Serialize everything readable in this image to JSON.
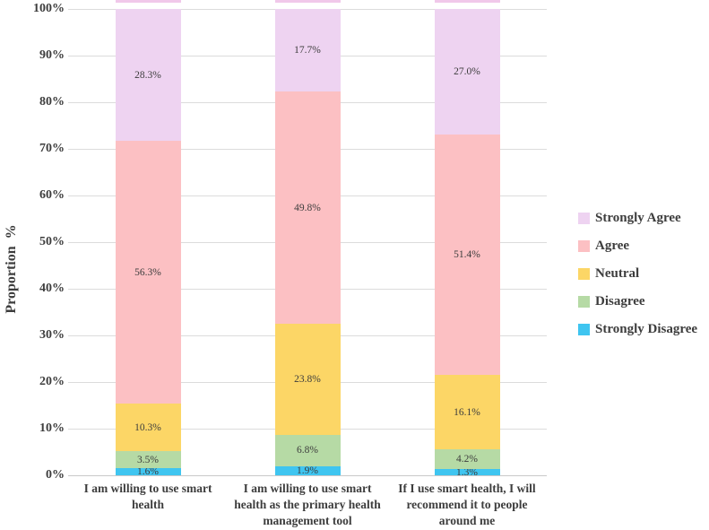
{
  "chart_data": {
    "type": "bar",
    "stacked": true,
    "orientation": "vertical",
    "title": "",
    "xlabel": "",
    "ylabel": "Proportion  %",
    "ylim": [
      0,
      100
    ],
    "yticks": [
      "0%",
      "10%",
      "20%",
      "30%",
      "40%",
      "50%",
      "60%",
      "70%",
      "80%",
      "90%",
      "100%"
    ],
    "grid": true,
    "legend_position": "right",
    "categories": [
      "I am willing to use smart health",
      "I am willing to use smart health as the primary health management tool",
      "If I use smart health, I will recommend it to people around me"
    ],
    "category_lines": [
      [
        "I am willing to use smart",
        "health"
      ],
      [
        "I am willing to use smart",
        "health as the primary health",
        "management tool"
      ],
      [
        "If I use smart health, I will",
        "recommend it to people",
        "around me"
      ]
    ],
    "series": [
      {
        "name": "Strongly Agree",
        "color": "#eed3f1",
        "values": [
          28.3,
          17.7,
          27.0
        ]
      },
      {
        "name": "Agree",
        "color": "#fcc0c3",
        "values": [
          56.3,
          49.8,
          51.4
        ]
      },
      {
        "name": "Neutral",
        "color": "#fcd666",
        "values": [
          10.3,
          23.8,
          16.1
        ]
      },
      {
        "name": "Disagree",
        "color": "#b6daa5",
        "values": [
          3.5,
          6.8,
          4.2
        ]
      },
      {
        "name": "Strongly Disagree",
        "color": "#3fc5f0",
        "values": [
          1.6,
          1.9,
          1.3
        ]
      }
    ],
    "colors": {
      "text": "#3d3d3d",
      "grid": "#dcdcdc",
      "axis_line": "#c9c9c9",
      "bar_top_edge": "#f1c8ea",
      "background": "#ffffff"
    }
  }
}
